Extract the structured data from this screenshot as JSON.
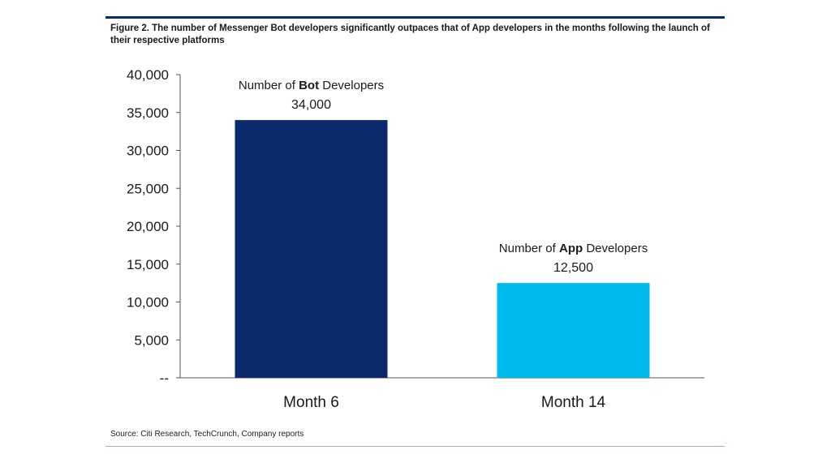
{
  "figure": {
    "title": "Figure 2. The number of Messenger Bot developers significantly outpaces that of App developers in the months following the launch of their respective platforms",
    "source": "Source: Citi Research, TechCrunch, Company reports"
  },
  "colors": {
    "frame_top": "#0b2a6b",
    "axis": "#555555"
  },
  "chart_data": {
    "type": "bar",
    "categories": [
      "Month 6",
      "Month 14"
    ],
    "values": [
      34000,
      12500
    ],
    "colors": [
      "#0b2a6b",
      "#00b9ee"
    ],
    "annotations": [
      {
        "prefix": "Number of ",
        "bold": "Bot",
        "suffix": " Developers",
        "value_label": "34,000"
      },
      {
        "prefix": "Number of ",
        "bold": "App",
        "suffix": " Developers",
        "value_label": "12,500"
      }
    ],
    "ylim": [
      0,
      40000
    ],
    "yticks": [
      0,
      5000,
      10000,
      15000,
      20000,
      25000,
      30000,
      35000,
      40000
    ],
    "ytick_labels": [
      "--",
      "5,000",
      "10,000",
      "15,000",
      "20,000",
      "25,000",
      "30,000",
      "35,000",
      "40,000"
    ],
    "xlabel": "",
    "ylabel": "",
    "grid": false,
    "legend": false
  }
}
